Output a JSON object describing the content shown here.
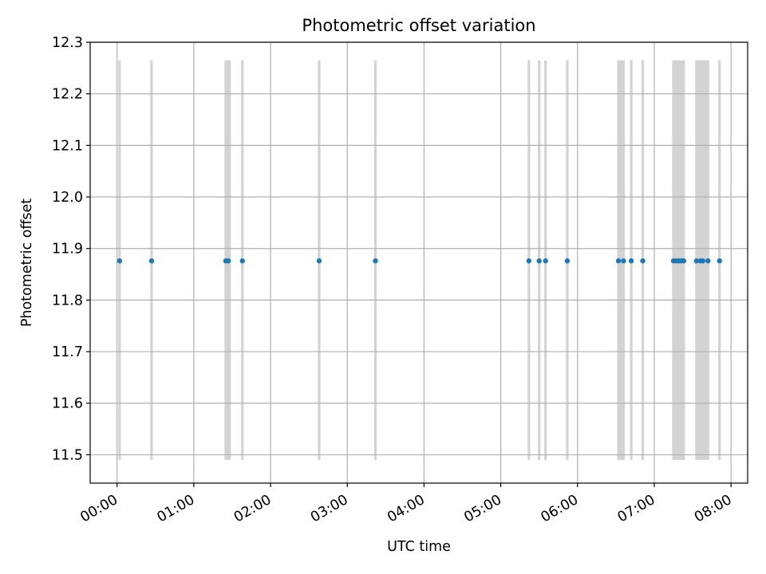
{
  "chart_data": {
    "type": "scatter",
    "title": "Photometric offset variation",
    "xlabel": "UTC time",
    "ylabel": "Photometric offset",
    "xlim": [
      "-00:21",
      "08:13"
    ],
    "ylim": [
      11.445,
      12.3
    ],
    "grid": true,
    "x_ticks": [
      "00:00",
      "01:00",
      "02:00",
      "03:00",
      "04:00",
      "05:00",
      "06:00",
      "07:00",
      "08:00"
    ],
    "y_ticks": [
      "11.5",
      "11.6",
      "11.7",
      "11.8",
      "11.9",
      "12.0",
      "12.1",
      "12.2",
      "12.3"
    ],
    "series": [
      {
        "values": [
          {
            "x": "00:02",
            "y": 11.876
          },
          {
            "x": "00:27",
            "y": 11.876
          },
          {
            "x": "01:25",
            "y": 11.876
          },
          {
            "x": "01:27",
            "y": 11.876
          },
          {
            "x": "01:38",
            "y": 11.876
          },
          {
            "x": "02:38",
            "y": 11.876
          },
          {
            "x": "03:22",
            "y": 11.876
          },
          {
            "x": "05:22",
            "y": 11.876
          },
          {
            "x": "05:30",
            "y": 11.876
          },
          {
            "x": "05:35",
            "y": 11.876
          },
          {
            "x": "05:52",
            "y": 11.876
          },
          {
            "x": "06:32",
            "y": 11.876
          },
          {
            "x": "06:36",
            "y": 11.876
          },
          {
            "x": "06:42",
            "y": 11.876
          },
          {
            "x": "06:51",
            "y": 11.876
          },
          {
            "x": "07:15",
            "y": 11.876
          },
          {
            "x": "07:17",
            "y": 11.876
          },
          {
            "x": "07:19",
            "y": 11.876
          },
          {
            "x": "07:21",
            "y": 11.876
          },
          {
            "x": "07:23",
            "y": 11.876
          },
          {
            "x": "07:33",
            "y": 11.876
          },
          {
            "x": "07:36",
            "y": 11.876
          },
          {
            "x": "07:38",
            "y": 11.876
          },
          {
            "x": "07:42",
            "y": 11.876
          },
          {
            "x": "07:51",
            "y": 11.876
          }
        ],
        "color": "#1f77b4"
      }
    ],
    "shaded_spans": {
      "color": "#d3d3d3",
      "y_range": [
        11.49,
        12.265
      ],
      "spans": [
        {
          "start": "00:01",
          "end": "00:03"
        },
        {
          "start": "00:26",
          "end": "00:28"
        },
        {
          "start": "01:24",
          "end": "01:29"
        },
        {
          "start": "01:37",
          "end": "01:39"
        },
        {
          "start": "02:37",
          "end": "02:39"
        },
        {
          "start": "03:21",
          "end": "03:23"
        },
        {
          "start": "05:21",
          "end": "05:23"
        },
        {
          "start": "05:29",
          "end": "05:31"
        },
        {
          "start": "05:34",
          "end": "05:36"
        },
        {
          "start": "05:51",
          "end": "05:53"
        },
        {
          "start": "06:31",
          "end": "06:37"
        },
        {
          "start": "06:41",
          "end": "06:43"
        },
        {
          "start": "06:50",
          "end": "06:52"
        },
        {
          "start": "07:14",
          "end": "07:24"
        },
        {
          "start": "07:32",
          "end": "07:43"
        },
        {
          "start": "07:50",
          "end": "07:52"
        }
      ]
    }
  }
}
